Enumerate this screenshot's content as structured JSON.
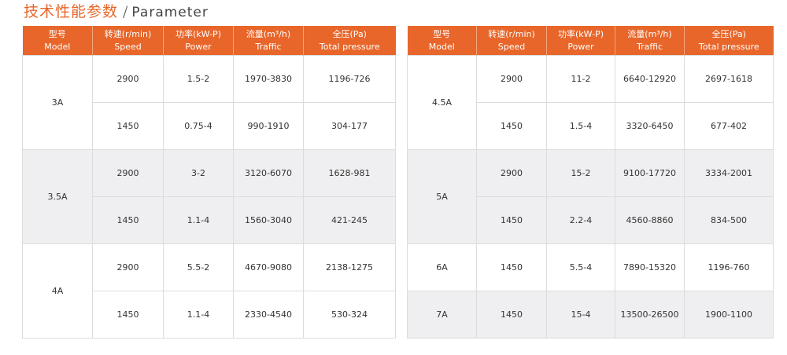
{
  "title": {
    "cn": "技术性能参数",
    "separator": "/",
    "en": "Parameter"
  },
  "headers": [
    {
      "cn": "型号",
      "en": "Model"
    },
    {
      "cn": "转速(r/min)",
      "en": "Speed"
    },
    {
      "cn": "功率(kW-P)",
      "en": "Power"
    },
    {
      "cn": "流量(m³/h)",
      "en": "Traffic"
    },
    {
      "cn": "全压(Pa)",
      "en": "Total pressure"
    }
  ],
  "left": [
    {
      "model": "3A",
      "rows": [
        [
          "2900",
          "1.5-2",
          "1970-3830",
          "1196-726"
        ],
        [
          "1450",
          "0.75-4",
          "990-1910",
          "304-177"
        ]
      ]
    },
    {
      "model": "3.5A",
      "rows": [
        [
          "2900",
          "3-2",
          "3120-6070",
          "1628-981"
        ],
        [
          "1450",
          "1.1-4",
          "1560-3040",
          "421-245"
        ]
      ]
    },
    {
      "model": "4A",
      "rows": [
        [
          "2900",
          "5.5-2",
          "4670-9080",
          "2138-1275"
        ],
        [
          "1450",
          "1.1-4",
          "2330-4540",
          "530-324"
        ]
      ]
    }
  ],
  "right": [
    {
      "model": "4.5A",
      "rows": [
        [
          "2900",
          "11-2",
          "6640-12920",
          "2697-1618"
        ],
        [
          "1450",
          "1.5-4",
          "3320-6450",
          "677-402"
        ]
      ]
    },
    {
      "model": "5A",
      "rows": [
        [
          "2900",
          "15-2",
          "9100-17720",
          "3334-2001"
        ],
        [
          "1450",
          "2.2-4",
          "4560-8860",
          "834-500"
        ]
      ]
    },
    {
      "model": "6A",
      "rows": [
        [
          "1450",
          "5.5-4",
          "7890-15320",
          "1196-760"
        ]
      ]
    },
    {
      "model": "7A",
      "rows": [
        [
          "1450",
          "15-4",
          "13500-26500",
          "1900-1100"
        ]
      ]
    }
  ],
  "colors": {
    "accent": "#e8662a",
    "alt_row": "#efeff1"
  }
}
